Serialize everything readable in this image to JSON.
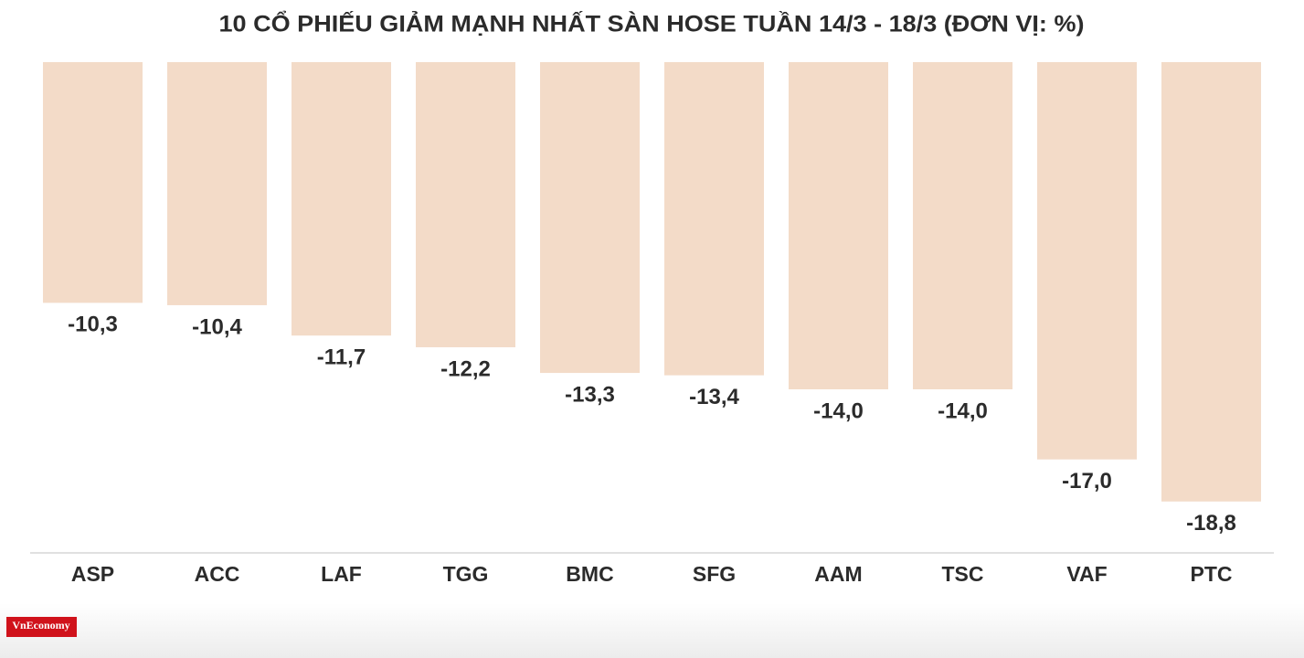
{
  "chart_data": {
    "type": "bar",
    "title": "10 CỔ PHIẾU GIẢM MẠNH NHẤT SÀN HOSE TUẦN 14/3 - 18/3 (ĐƠN VỊ: %)",
    "categories": [
      "ASP",
      "ACC",
      "LAF",
      "TGG",
      "BMC",
      "SFG",
      "AAM",
      "TSC",
      "VAF",
      "PTC"
    ],
    "values": [
      -10.3,
      -10.4,
      -11.7,
      -12.2,
      -13.3,
      -13.4,
      -14.0,
      -14.0,
      -17.0,
      -18.8
    ],
    "value_labels": [
      "-10,3",
      "-10,4",
      "-11,7",
      "-12,2",
      "-13,3",
      "-13,4",
      "-14,0",
      "-14,0",
      "-17,0",
      "-18,8"
    ],
    "color": "#f3dbc8",
    "ylim": [
      -21,
      0
    ],
    "logo": "VnEconomy"
  }
}
